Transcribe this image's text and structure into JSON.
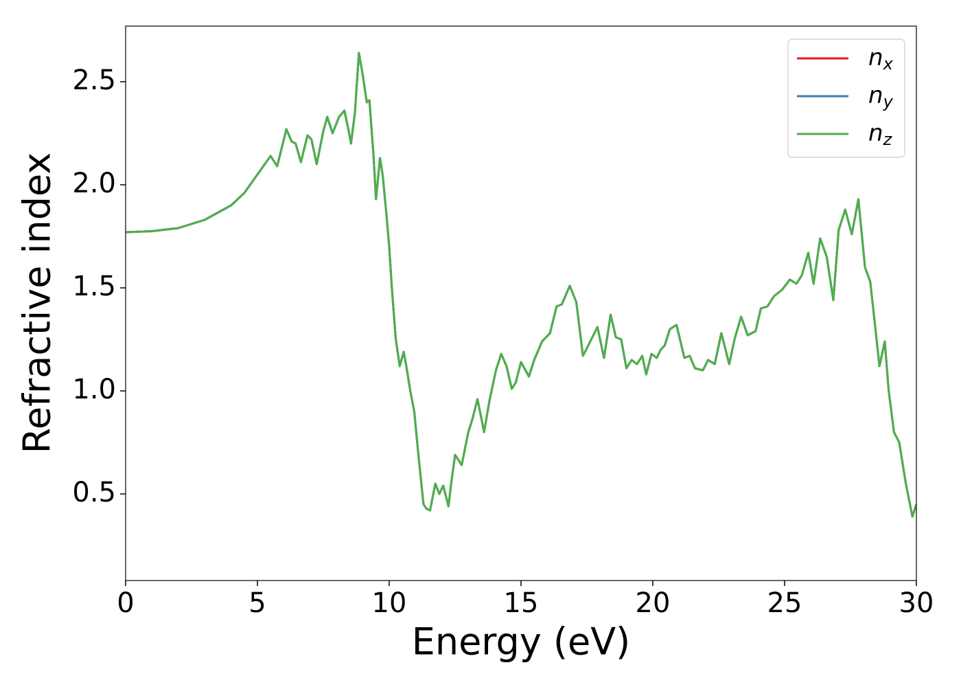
{
  "chart_data": {
    "type": "line",
    "xlabel": "Energy (eV)",
    "ylabel": "Refractive index",
    "x": [
      0,
      1,
      2,
      3,
      4,
      4.5,
      5,
      5.5,
      5.75,
      6.1,
      6.3,
      6.45,
      6.65,
      6.9,
      7.05,
      7.25,
      7.5,
      7.65,
      7.85,
      8.1,
      8.3,
      8.45,
      8.55,
      8.7,
      8.85,
      9.0,
      9.15,
      9.25,
      9.4,
      9.5,
      9.65,
      9.75,
      9.9,
      10.0,
      10.1,
      10.25,
      10.4,
      10.55,
      10.65,
      10.8,
      10.95,
      11.1,
      11.3,
      11.4,
      11.55,
      11.75,
      11.9,
      12.05,
      12.25,
      12.35,
      12.5,
      12.75,
      13.0,
      13.15,
      13.35,
      13.6,
      13.8,
      14.05,
      14.25,
      14.45,
      14.65,
      14.8,
      15.0,
      15.3,
      15.5,
      15.8,
      16.1,
      16.35,
      16.55,
      16.85,
      17.1,
      17.35,
      17.55,
      17.9,
      18.15,
      18.4,
      18.6,
      18.8,
      19.0,
      19.2,
      19.4,
      19.6,
      19.75,
      19.95,
      20.15,
      20.3,
      20.45,
      20.65,
      20.9,
      21.2,
      21.4,
      21.6,
      21.9,
      22.1,
      22.35,
      22.6,
      22.9,
      23.1,
      23.35,
      23.6,
      23.9,
      24.1,
      24.35,
      24.6,
      24.9,
      25.2,
      25.45,
      25.65,
      25.9,
      26.1,
      26.35,
      26.6,
      26.85,
      27.05,
      27.3,
      27.55,
      27.8,
      28.05,
      28.25,
      28.6,
      28.8,
      28.95,
      29.15,
      29.35,
      29.6,
      29.85,
      30
    ],
    "series": [
      {
        "name": "nx",
        "color": "#e41a1c",
        "values": [
          1.77,
          1.775,
          1.79,
          1.83,
          1.9,
          1.96,
          2.05,
          2.14,
          2.09,
          2.27,
          2.21,
          2.2,
          2.11,
          2.24,
          2.22,
          2.1,
          2.26,
          2.33,
          2.25,
          2.33,
          2.36,
          2.27,
          2.2,
          2.35,
          2.64,
          2.53,
          2.4,
          2.41,
          2.15,
          1.93,
          2.13,
          2.05,
          1.85,
          1.7,
          1.5,
          1.25,
          1.12,
          1.19,
          1.12,
          1.0,
          0.9,
          0.7,
          0.45,
          0.43,
          0.42,
          0.55,
          0.5,
          0.54,
          0.44,
          0.55,
          0.69,
          0.64,
          0.8,
          0.86,
          0.96,
          0.8,
          0.95,
          1.1,
          1.18,
          1.12,
          1.01,
          1.04,
          1.14,
          1.07,
          1.15,
          1.24,
          1.28,
          1.41,
          1.42,
          1.51,
          1.43,
          1.17,
          1.22,
          1.31,
          1.16,
          1.37,
          1.26,
          1.25,
          1.11,
          1.15,
          1.13,
          1.17,
          1.08,
          1.18,
          1.16,
          1.2,
          1.22,
          1.3,
          1.32,
          1.16,
          1.17,
          1.11,
          1.1,
          1.15,
          1.13,
          1.28,
          1.13,
          1.25,
          1.36,
          1.27,
          1.29,
          1.4,
          1.41,
          1.46,
          1.49,
          1.54,
          1.52,
          1.56,
          1.67,
          1.52,
          1.74,
          1.65,
          1.44,
          1.78,
          1.88,
          1.76,
          1.93,
          1.6,
          1.53,
          1.12,
          1.24,
          1.0,
          0.8,
          0.75,
          0.55,
          0.39,
          0.45
        ]
      },
      {
        "name": "ny",
        "color": "#377eb8",
        "values": [
          1.77,
          1.775,
          1.79,
          1.83,
          1.9,
          1.96,
          2.05,
          2.14,
          2.09,
          2.27,
          2.21,
          2.2,
          2.11,
          2.24,
          2.22,
          2.1,
          2.26,
          2.33,
          2.25,
          2.33,
          2.36,
          2.27,
          2.2,
          2.35,
          2.64,
          2.53,
          2.4,
          2.41,
          2.15,
          1.93,
          2.13,
          2.05,
          1.85,
          1.7,
          1.5,
          1.25,
          1.12,
          1.19,
          1.12,
          1.0,
          0.9,
          0.7,
          0.45,
          0.43,
          0.42,
          0.55,
          0.5,
          0.54,
          0.44,
          0.55,
          0.69,
          0.64,
          0.8,
          0.86,
          0.96,
          0.8,
          0.95,
          1.1,
          1.18,
          1.12,
          1.01,
          1.04,
          1.14,
          1.07,
          1.15,
          1.24,
          1.28,
          1.41,
          1.42,
          1.51,
          1.43,
          1.17,
          1.22,
          1.31,
          1.16,
          1.37,
          1.26,
          1.25,
          1.11,
          1.15,
          1.13,
          1.17,
          1.08,
          1.18,
          1.16,
          1.2,
          1.22,
          1.3,
          1.32,
          1.16,
          1.17,
          1.11,
          1.1,
          1.15,
          1.13,
          1.28,
          1.13,
          1.25,
          1.36,
          1.27,
          1.29,
          1.4,
          1.41,
          1.46,
          1.49,
          1.54,
          1.52,
          1.56,
          1.67,
          1.52,
          1.74,
          1.65,
          1.44,
          1.78,
          1.88,
          1.76,
          1.93,
          1.6,
          1.53,
          1.12,
          1.24,
          1.0,
          0.8,
          0.75,
          0.55,
          0.39,
          0.45
        ]
      },
      {
        "name": "nz",
        "color": "#4daf4a",
        "values": [
          1.77,
          1.775,
          1.79,
          1.83,
          1.9,
          1.96,
          2.05,
          2.14,
          2.09,
          2.27,
          2.21,
          2.2,
          2.11,
          2.24,
          2.22,
          2.1,
          2.26,
          2.33,
          2.25,
          2.33,
          2.36,
          2.27,
          2.2,
          2.35,
          2.64,
          2.53,
          2.4,
          2.41,
          2.15,
          1.93,
          2.13,
          2.05,
          1.85,
          1.7,
          1.5,
          1.25,
          1.12,
          1.19,
          1.12,
          1.0,
          0.9,
          0.7,
          0.45,
          0.43,
          0.42,
          0.55,
          0.5,
          0.54,
          0.44,
          0.55,
          0.69,
          0.64,
          0.8,
          0.86,
          0.96,
          0.8,
          0.95,
          1.1,
          1.18,
          1.12,
          1.01,
          1.04,
          1.14,
          1.07,
          1.15,
          1.24,
          1.28,
          1.41,
          1.42,
          1.51,
          1.43,
          1.17,
          1.22,
          1.31,
          1.16,
          1.37,
          1.26,
          1.25,
          1.11,
          1.15,
          1.13,
          1.17,
          1.08,
          1.18,
          1.16,
          1.2,
          1.22,
          1.3,
          1.32,
          1.16,
          1.17,
          1.11,
          1.1,
          1.15,
          1.13,
          1.28,
          1.13,
          1.25,
          1.36,
          1.27,
          1.29,
          1.4,
          1.41,
          1.46,
          1.49,
          1.54,
          1.52,
          1.56,
          1.67,
          1.52,
          1.74,
          1.65,
          1.44,
          1.78,
          1.88,
          1.76,
          1.93,
          1.6,
          1.53,
          1.12,
          1.24,
          1.0,
          0.8,
          0.75,
          0.55,
          0.39,
          0.45
        ]
      }
    ],
    "xlim": [
      0,
      30
    ],
    "xticks": [
      0,
      5,
      10,
      15,
      20,
      25,
      30
    ],
    "ylim": [
      0.08,
      2.77
    ],
    "yticks": [
      0.5,
      {
        "value": 1.0,
        "label": "1.0"
      },
      1.5,
      {
        "value": 2.0,
        "label": "2.0"
      },
      2.5
    ],
    "grid": false,
    "legend": "upper right"
  }
}
